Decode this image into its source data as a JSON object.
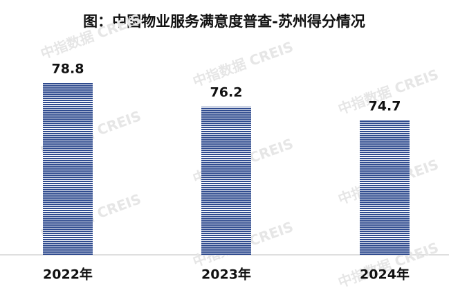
{
  "chart_data": {
    "type": "bar",
    "title": "图：中国物业服务满意度普查-苏州得分情况",
    "categories": [
      "2022年",
      "2023年",
      "2024年"
    ],
    "values": [
      78.8,
      76.2,
      74.7
    ],
    "color": "#2f4b8f",
    "ylim": [
      60,
      80
    ],
    "watermark": "中指数据 CREIS"
  }
}
